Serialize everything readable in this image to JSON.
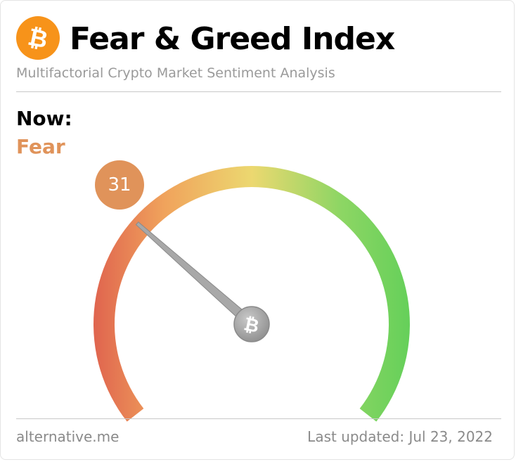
{
  "header": {
    "title": "Fear & Greed Index",
    "subtitle": "Multifactorial Crypto Market Sentiment Analysis",
    "logo_icon": "bitcoin-icon",
    "logo_color": "#f7931a"
  },
  "current": {
    "label": "Now:",
    "classification": "Fear",
    "value": "31",
    "accent_color": "#e0935a"
  },
  "gauge": {
    "min": 0,
    "max": 100,
    "value": 31,
    "colors": [
      "#e0664f",
      "#f0a35c",
      "#ecd870",
      "#8ed664",
      "#66d05a"
    ],
    "hub_icon": "bitcoin-icon"
  },
  "footer": {
    "source": "alternative.me",
    "updated": "Last updated: Jul 23, 2022"
  }
}
